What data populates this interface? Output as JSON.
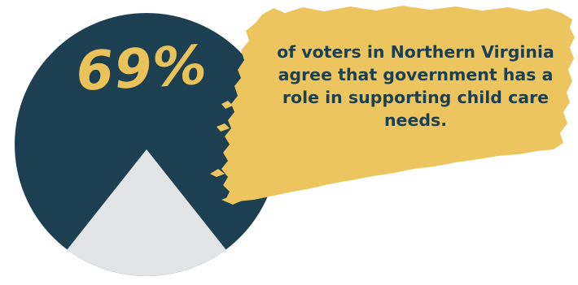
{
  "stat": {
    "value": "69%",
    "percent": 69
  },
  "caption": {
    "text": "of voters in  Northern Virginia\nagree that government has a\nrole in supporting child care\nneeds."
  },
  "colors": {
    "circle": "#1d3f52",
    "triangle": "#e3e4e6",
    "highlight": "#edc55f",
    "stat_text": "#e9c25a",
    "caption_text": "#1d3f52"
  },
  "icons": {
    "circle_graphic": "pie-circle-icon",
    "mountain_graphic": "triangle-icon",
    "brush_stroke": "brush-stroke-icon"
  }
}
